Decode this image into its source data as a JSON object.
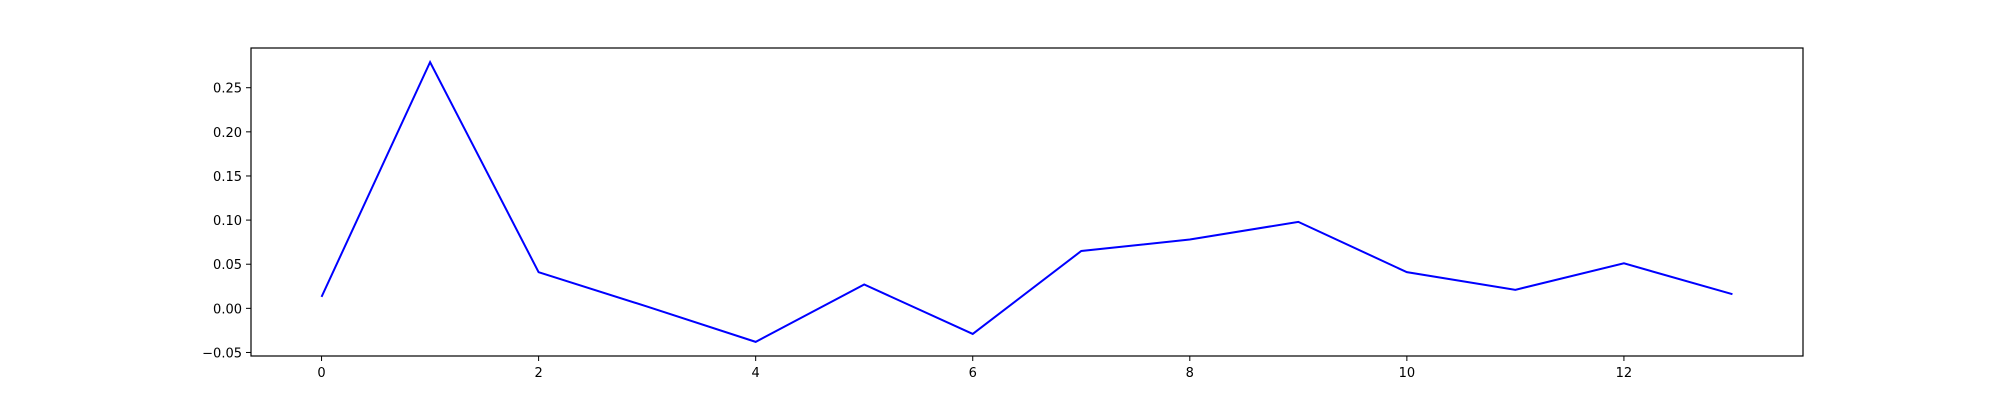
{
  "chart_data": {
    "type": "line",
    "title": "",
    "xlabel": "",
    "ylabel": "",
    "x": [
      0,
      1,
      2,
      3,
      4,
      5,
      6,
      7,
      8,
      9,
      10,
      11,
      12,
      13
    ],
    "series": [
      {
        "values": [
          0.013,
          0.279,
          0.041,
          0.002,
          -0.038,
          0.027,
          -0.029,
          0.065,
          0.078,
          0.098,
          0.041,
          0.021,
          0.051,
          0.016
        ],
        "color": "#0000ff"
      }
    ],
    "xlim": [
      -0.65,
      13.65
    ],
    "ylim": [
      -0.054,
      0.295
    ],
    "xticks": [
      0,
      2,
      4,
      6,
      8,
      10,
      12
    ],
    "xtick_labels": [
      "0",
      "2",
      "4",
      "6",
      "8",
      "10",
      "12"
    ],
    "yticks": [
      -0.05,
      0.0,
      0.05,
      0.1,
      0.15,
      0.2,
      0.25
    ],
    "ytick_labels": [
      "−0.05",
      "0.00",
      "0.05",
      "0.10",
      "0.15",
      "0.20",
      "0.25"
    ],
    "grid": false,
    "legend": "none"
  }
}
